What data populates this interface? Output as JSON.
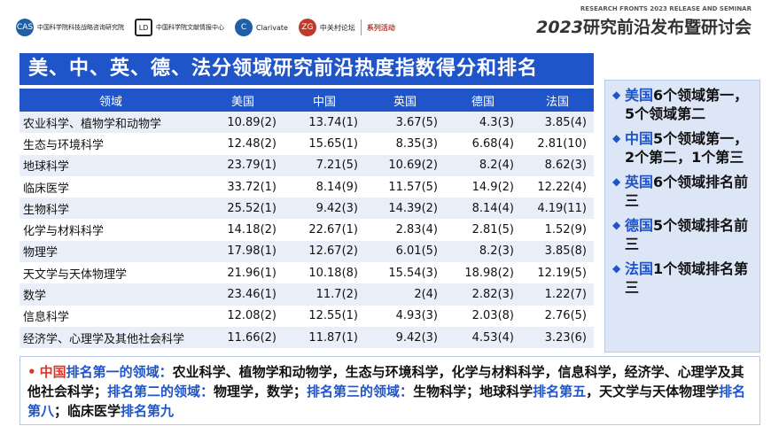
{
  "header": {
    "logos": [
      {
        "mark": "CAS",
        "text": "中国科学院科技战略咨询研究院"
      },
      {
        "mark": "LD",
        "text": "中国科学院文献情报中心"
      },
      {
        "mark": "C",
        "text": "Clarivate"
      },
      {
        "mark": "ZG",
        "text": "中关村论坛"
      }
    ],
    "series_label": "系列活动",
    "banner_sub": "RESEARCH FRONTS 2023 RELEASE AND SEMINAR",
    "banner_year": "2023",
    "banner_title": "研究前沿发布暨研讨会"
  },
  "title": "美、中、英、德、法分领域研究前沿热度指数得分和排名",
  "table": {
    "headers": [
      "领域",
      "美国",
      "中国",
      "英国",
      "德国",
      "法国"
    ],
    "rows": [
      [
        "农业科学、植物学和动物学",
        "10.89(2)",
        "13.74(1)",
        "3.67(5)",
        "4.3(3)",
        "3.85(4)"
      ],
      [
        "生态与环境科学",
        "12.48(2)",
        "15.65(1)",
        "8.35(3)",
        "6.68(4)",
        "2.81(10)"
      ],
      [
        "地球科学",
        "23.79(1)",
        "7.21(5)",
        "10.69(2)",
        "8.2(4)",
        "8.62(3)"
      ],
      [
        "临床医学",
        "33.72(1)",
        "8.14(9)",
        "11.57(5)",
        "14.9(2)",
        "12.22(4)"
      ],
      [
        "生物科学",
        "25.52(1)",
        "9.42(3)",
        "14.39(2)",
        "8.14(4)",
        "4.19(11)"
      ],
      [
        "化学与材料科学",
        "14.18(2)",
        "22.67(1)",
        "2.83(4)",
        "2.81(5)",
        "1.52(9)"
      ],
      [
        "物理学",
        "17.98(1)",
        "12.67(2)",
        "6.01(5)",
        "8.2(3)",
        "3.85(8)"
      ],
      [
        "天文学与天体物理学",
        "21.96(1)",
        "10.18(8)",
        "15.54(3)",
        "18.98(2)",
        "12.19(5)"
      ],
      [
        "数学",
        "23.46(1)",
        "11.7(2)",
        "2(4)",
        "2.82(3)",
        "1.22(7)"
      ],
      [
        "信息科学",
        "12.08(2)",
        "12.55(1)",
        "4.93(3)",
        "2.03(8)",
        "2.76(5)"
      ],
      [
        "经济学、心理学及其他社会科学",
        "11.66(2)",
        "11.87(1)",
        "9.42(3)",
        "4.53(4)",
        "3.23(6)"
      ]
    ]
  },
  "side": [
    {
      "country": "美国",
      "text": "6个领域第一，5个领域第二"
    },
    {
      "country": "中国",
      "text": "5个领域第一，2个第二，1个第三"
    },
    {
      "country": "英国",
      "text": "6个领域排名前三"
    },
    {
      "country": "德国",
      "text": "5个领域排名前三"
    },
    {
      "country": "法国",
      "text": "1个领域排名第三"
    }
  ],
  "bottom": {
    "bullet": "•",
    "country": "中国",
    "k1": "排名第一的领域：",
    "v1": "农业科学、植物学和动物学，生态与环境科学，化学与材料科学，信息科学，经济学、心理学及其他社会科学；",
    "k2": "排名第二的领域：",
    "v2": "物理学，数学；",
    "k3": "排名第三的领域：",
    "v3": "生物科学；地球科学",
    "k4": "排名第五",
    "v4": "，天文学与天体物理学",
    "k5": "排名第八",
    "v5": "；临床医学",
    "k6": "排名第九"
  },
  "colors": {
    "accent": "#1f55c8",
    "highlight": "#e0332a",
    "row_alt": "#e9eef8"
  }
}
